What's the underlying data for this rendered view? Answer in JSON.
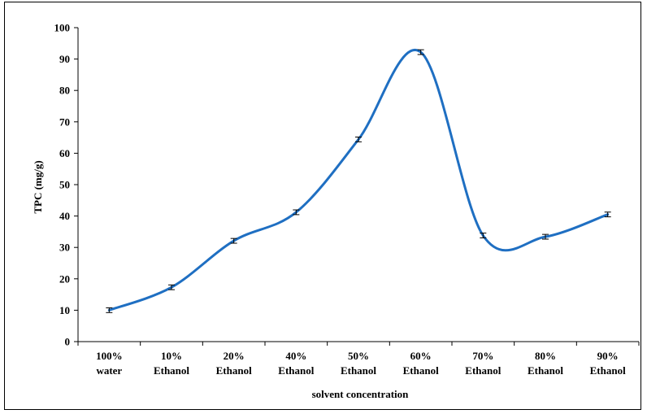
{
  "chart_data": {
    "type": "line",
    "smooth": true,
    "title": "",
    "xlabel": "solvent concentration",
    "ylabel": "TPC (mg/g)",
    "ylim": [
      0,
      100
    ],
    "y_ticks": [
      "0",
      "10",
      "20",
      "30",
      "40",
      "50",
      "60",
      "70",
      "80",
      "90",
      "100"
    ],
    "categories": [
      [
        "100%",
        "water"
      ],
      [
        "10%",
        "Ethanol"
      ],
      [
        "20%",
        "Ethanol"
      ],
      [
        "40%",
        "Ethanol"
      ],
      [
        "50%",
        "Ethanol"
      ],
      [
        "60%",
        "Ethanol"
      ],
      [
        "70%",
        "Ethanol"
      ],
      [
        "80%",
        "Ethanol"
      ],
      [
        "90%",
        "Ethanol"
      ]
    ],
    "series": [
      {
        "values": [
          10,
          17.3,
          32.1,
          41.2,
          64.4,
          92.2,
          33.8,
          33.4,
          40.5
        ],
        "error": [
          0.5,
          0.5,
          0.5,
          0.5,
          0.5,
          0.5,
          0.5,
          0.5,
          0.5
        ],
        "color": "#1f6fc2"
      }
    ],
    "error_bar_color": "#000000",
    "grid": false,
    "legend": "none"
  }
}
